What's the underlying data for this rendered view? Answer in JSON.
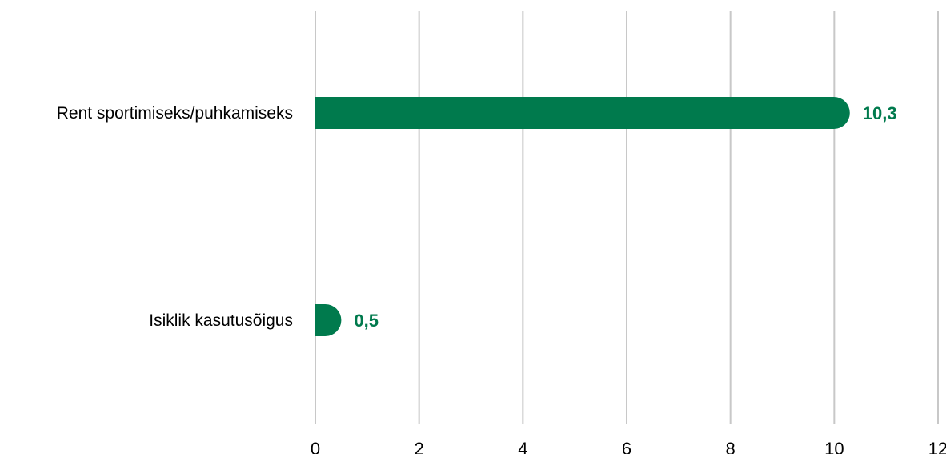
{
  "chart_data": {
    "type": "bar",
    "orientation": "horizontal",
    "categories": [
      "Rent sportimiseks/puhkamiseks",
      "Isiklik kasutusõigus"
    ],
    "values": [
      10.3,
      0.5
    ],
    "value_labels": [
      "10,3",
      "0,5"
    ],
    "xlim": [
      0,
      12
    ],
    "xticks": [
      0,
      2,
      4,
      6,
      8,
      10,
      12
    ],
    "xtick_labels": [
      "0",
      "2",
      "4",
      "6",
      "8",
      "10",
      "12"
    ],
    "grid": "vertical",
    "legend": "none",
    "bar_color": "#007a4d",
    "label_color": "#007a4d",
    "grid_color": "#c8c8c8"
  }
}
